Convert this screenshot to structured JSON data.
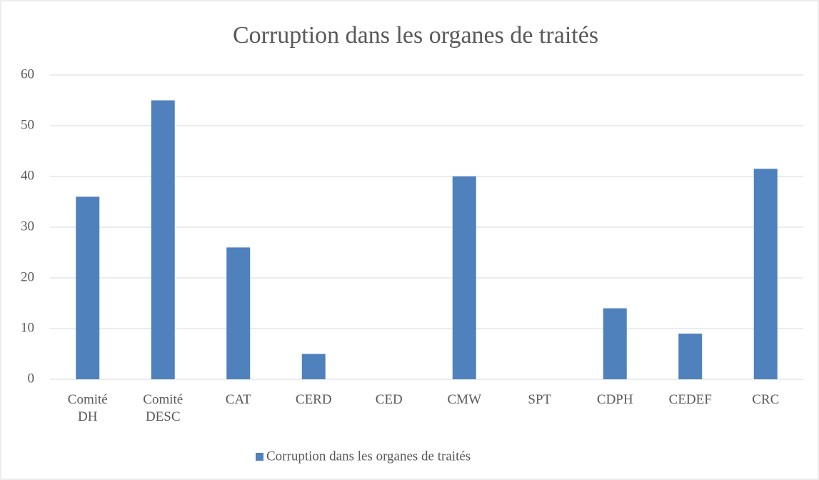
{
  "chart_data": {
    "type": "bar",
    "title": "Corruption dans les organes de traités",
    "categories": [
      "Comité DH",
      "Comité DESC",
      "CAT",
      "CERD",
      "CED",
      "CMW",
      "SPT",
      "CDPH",
      "CEDEF",
      "CRC"
    ],
    "series": [
      {
        "name": "Corruption dans les organes de traités",
        "color": "#4f81bd",
        "values": [
          36,
          55,
          26,
          5,
          0,
          40,
          0,
          14,
          9,
          41.5
        ]
      }
    ],
    "ylim": [
      0,
      60
    ],
    "yticks": [
      0,
      10,
      20,
      30,
      40,
      50,
      60
    ],
    "grid": true,
    "legend": "bottom"
  }
}
